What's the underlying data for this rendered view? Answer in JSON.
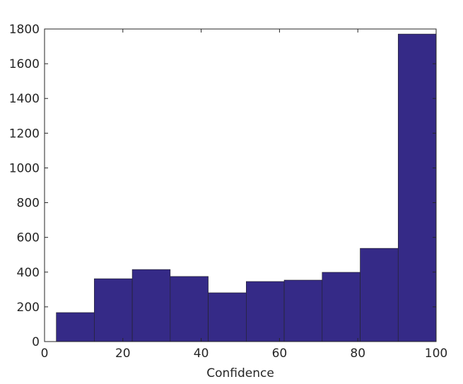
{
  "chart_data": {
    "type": "histogram",
    "xlabel": "Confidence",
    "bins": [
      3,
      12.7,
      22.4,
      32.1,
      41.8,
      51.5,
      61.2,
      70.9,
      80.6,
      90.3,
      100
    ],
    "values": [
      167,
      362,
      415,
      375,
      281,
      346,
      354,
      399,
      537,
      1771
    ],
    "color": "#352a87",
    "xlim": [
      0,
      100
    ],
    "xticks": [
      0,
      20,
      40,
      60,
      80,
      100
    ],
    "ylim": [
      0,
      1800
    ],
    "yticks": [
      0,
      200,
      400,
      600,
      800,
      1000,
      1200,
      1400,
      1600,
      1800
    ]
  }
}
